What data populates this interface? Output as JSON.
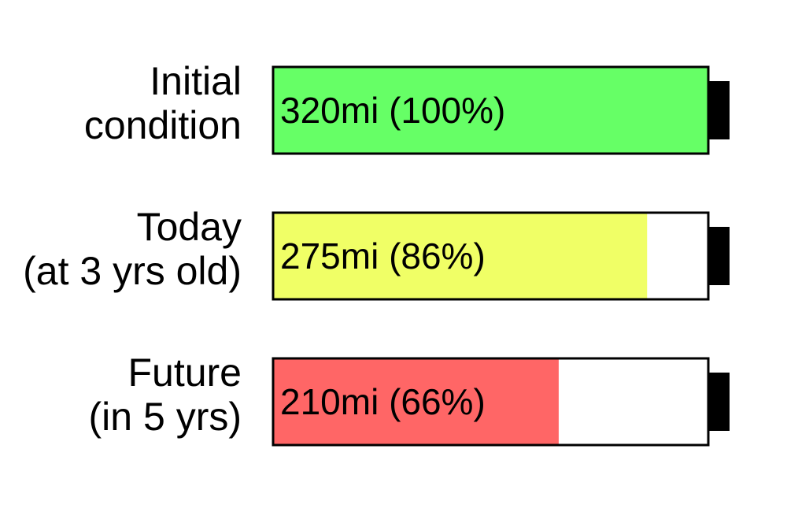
{
  "chart_data": {
    "type": "bar",
    "orientation": "horizontal",
    "style": "battery",
    "unit": "mi",
    "max_value": 320,
    "categories": [
      [
        "Initial",
        "condition"
      ],
      [
        "Today",
        "(at 3 yrs old)"
      ],
      [
        "Future",
        "(in 5 yrs)"
      ]
    ],
    "values": [
      320,
      275,
      210
    ],
    "percents": [
      100,
      86,
      66
    ],
    "data_labels": [
      "320mi (100%)",
      "275mi (86%)",
      "210mi (66%)"
    ],
    "colors": [
      "#66ff66",
      "#f0ff66",
      "#ff6666"
    ],
    "battery_outline_color": "#000000",
    "empty_color": "#ffffff"
  }
}
